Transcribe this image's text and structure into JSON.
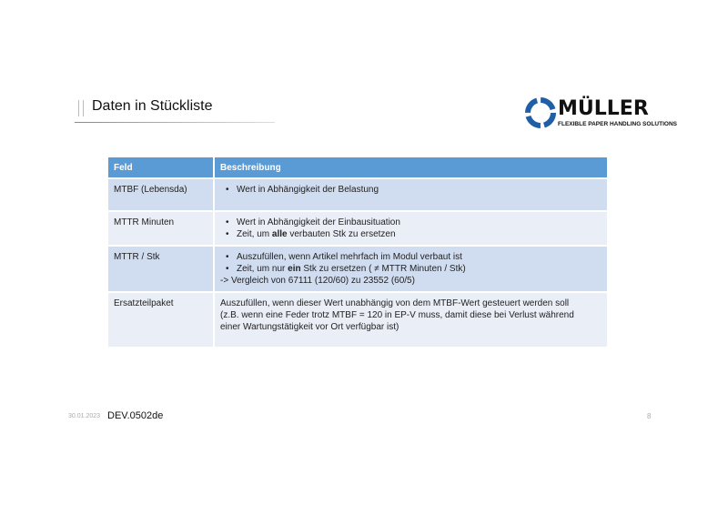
{
  "slide": {
    "title": "Daten in Stückliste",
    "logo": {
      "word": "MÜLLER",
      "tagline": "FLEXIBLE PAPER HANDLING SOLUTIONS",
      "brand_color": "#1f5fa8"
    },
    "table": {
      "headers": [
        "Feld",
        "Beschreibung"
      ],
      "header_color": "#5b9bd5",
      "rows": [
        {
          "feld": "MTBF (Lebensda)",
          "lines": [
            {
              "bullet": true,
              "parts": [
                {
                  "t": "Wert in Abhängigkeit der Belastung"
                }
              ]
            }
          ]
        },
        {
          "feld": "MTTR Minuten",
          "lines": [
            {
              "bullet": true,
              "parts": [
                {
                  "t": "Wert in Abhängigkeit der Einbausituation"
                }
              ]
            },
            {
              "bullet": true,
              "parts": [
                {
                  "t": "Zeit, um "
                },
                {
                  "t": "alle",
                  "b": true
                },
                {
                  "t": " verbauten Stk zu ersetzen"
                }
              ]
            }
          ]
        },
        {
          "feld": "MTTR / Stk",
          "lines": [
            {
              "bullet": true,
              "parts": [
                {
                  "t": "Auszufüllen, wenn Artikel mehrfach im Modul verbaut ist"
                }
              ]
            },
            {
              "bullet": true,
              "parts": [
                {
                  "t": "Zeit, um nur "
                },
                {
                  "t": "ein",
                  "b": true
                },
                {
                  "t": " Stk zu ersetzen ( ≠ MTTR Minuten / Stk)"
                }
              ]
            },
            {
              "bullet": false,
              "parts": [
                {
                  "t": "-> Vergleich von 67111 (120/60) zu 23552 (60/5)"
                }
              ]
            }
          ]
        },
        {
          "feld": "Ersatzteilpaket",
          "lines": [
            {
              "bullet": false,
              "parts": [
                {
                  "t": "Auszufüllen, wenn dieser Wert unabhängig von dem MTBF-Wert gesteuert werden soll"
                }
              ]
            },
            {
              "bullet": false,
              "parts": [
                {
                  "t": "(z.B. wenn eine Feder trotz MTBF = 120 in EP-V muss, damit diese bei Verlust während"
                }
              ]
            },
            {
              "bullet": false,
              "parts": [
                {
                  "t": "einer Wartungstätigkeit vor Ort verfügbar ist)"
                }
              ]
            }
          ]
        }
      ]
    },
    "footer": {
      "date": "30.01.2023",
      "code": "DEV.0502de",
      "page": "8"
    }
  }
}
